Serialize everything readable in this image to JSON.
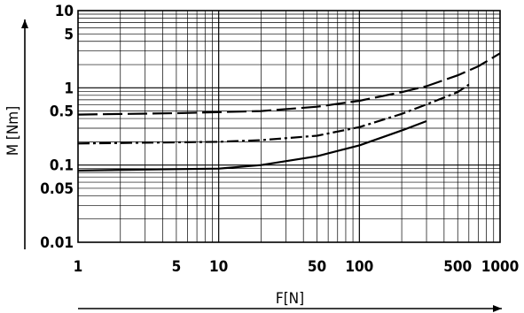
{
  "chart_data": {
    "type": "line",
    "xlabel": "F[N]",
    "ylabel": "M [Nm]",
    "x_scale": "log",
    "y_scale": "log",
    "xlim": [
      1,
      1000
    ],
    "ylim": [
      0.01,
      10
    ],
    "grid": true,
    "legend": "none",
    "x_tick_labels": [
      {
        "value": 1,
        "label": "1"
      },
      {
        "value": 5,
        "label": "5"
      },
      {
        "value": 10,
        "label": "10"
      },
      {
        "value": 50,
        "label": "50"
      },
      {
        "value": 100,
        "label": "100"
      },
      {
        "value": 500,
        "label": "500"
      },
      {
        "value": 1000,
        "label": "1000"
      }
    ],
    "y_tick_labels": [
      {
        "value": 0.01,
        "label": "0.01"
      },
      {
        "value": 0.05,
        "label": "0.05"
      },
      {
        "value": 0.1,
        "label": "0.1"
      },
      {
        "value": 0.5,
        "label": "0.5"
      },
      {
        "value": 1,
        "label": "1"
      },
      {
        "value": 5,
        "label": "5"
      },
      {
        "value": 10,
        "label": "10"
      }
    ],
    "series": [
      {
        "style": "dashed",
        "points": [
          [
            1,
            0.45
          ],
          [
            5,
            0.47
          ],
          [
            20,
            0.5
          ],
          [
            50,
            0.57
          ],
          [
            100,
            0.68
          ],
          [
            200,
            0.88
          ],
          [
            300,
            1.05
          ],
          [
            500,
            1.45
          ],
          [
            700,
            1.9
          ],
          [
            1000,
            2.8
          ]
        ]
      },
      {
        "style": "dash-dot",
        "points": [
          [
            1,
            0.19
          ],
          [
            10,
            0.2
          ],
          [
            20,
            0.21
          ],
          [
            50,
            0.24
          ],
          [
            100,
            0.31
          ],
          [
            200,
            0.46
          ],
          [
            300,
            0.61
          ],
          [
            500,
            0.88
          ],
          [
            600,
            1.1
          ]
        ]
      },
      {
        "style": "solid",
        "points": [
          [
            1,
            0.085
          ],
          [
            10,
            0.09
          ],
          [
            20,
            0.1
          ],
          [
            50,
            0.13
          ],
          [
            100,
            0.18
          ],
          [
            200,
            0.28
          ],
          [
            300,
            0.37
          ]
        ]
      }
    ]
  }
}
